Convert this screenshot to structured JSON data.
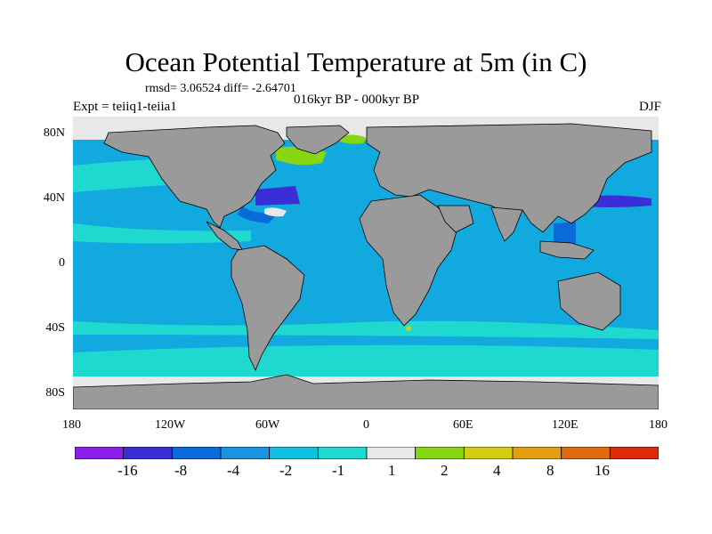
{
  "title": "Ocean Potential Temperature at 5m (in C)",
  "stats": "rmsd= 3.06524  diff= -2.64701",
  "experiment": "Expt = teiiq1-teiia1",
  "period": "016kyr BP - 000kyr BP",
  "season": "DJF",
  "lat_ticks": [
    {
      "label": "80N",
      "value": 80
    },
    {
      "label": "40N",
      "value": 40
    },
    {
      "label": "0",
      "value": 0
    },
    {
      "label": "40S",
      "value": -40
    },
    {
      "label": "80S",
      "value": -80
    }
  ],
  "lon_ticks": [
    {
      "label": "180",
      "value": -180
    },
    {
      "label": "120W",
      "value": -120
    },
    {
      "label": "60W",
      "value": -60
    },
    {
      "label": "0",
      "value": 0
    },
    {
      "label": "60E",
      "value": 60
    },
    {
      "label": "120E",
      "value": 120
    },
    {
      "label": "180",
      "value": 180
    }
  ],
  "colorbar": {
    "colors": [
      "#8b1eea",
      "#3a2fd6",
      "#0a6ad8",
      "#1b94e0",
      "#10c2e0",
      "#1fd8d0",
      "#e8e8e8",
      "#86d614",
      "#d4cc10",
      "#e0a010",
      "#e06a10",
      "#e02a10"
    ],
    "labels": [
      "-16",
      "-8",
      "-4",
      "-2",
      "-1",
      "1",
      "2",
      "4",
      "8",
      "16"
    ]
  },
  "colors": {
    "land": "#9a9a9a",
    "ocean_base": "#12a9df",
    "near_zero": "#e8e8e8"
  }
}
